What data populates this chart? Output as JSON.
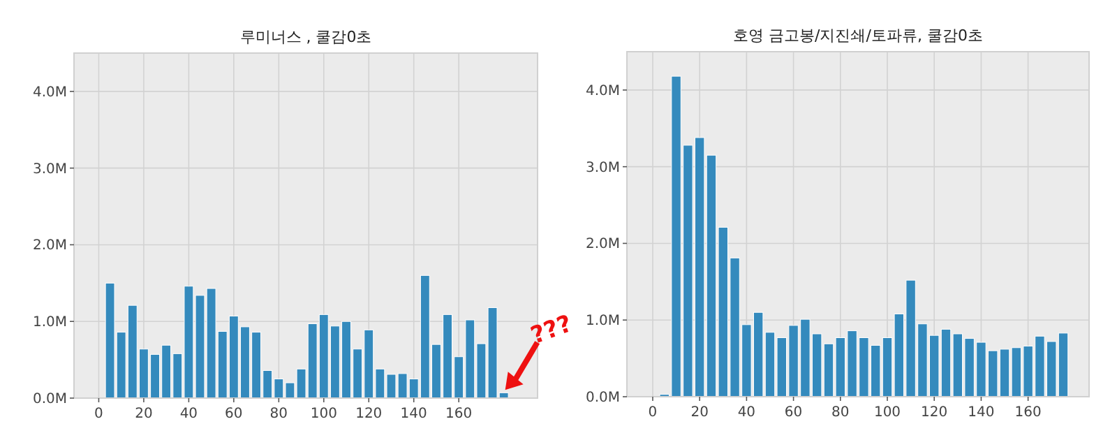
{
  "chart_data": [
    {
      "type": "bar",
      "title": "루미너스 , 쿨감0초",
      "x": [
        5,
        10,
        15,
        20,
        25,
        30,
        35,
        40,
        45,
        50,
        55,
        60,
        65,
        70,
        75,
        80,
        85,
        90,
        95,
        100,
        105,
        110,
        115,
        120,
        125,
        130,
        135,
        140,
        145,
        150,
        155,
        160,
        165,
        170,
        175,
        180
      ],
      "values": [
        1500000,
        860000,
        1210000,
        640000,
        570000,
        690000,
        580000,
        1460000,
        1340000,
        1430000,
        870000,
        1070000,
        930000,
        860000,
        360000,
        250000,
        200000,
        380000,
        970000,
        1090000,
        940000,
        1000000,
        640000,
        890000,
        380000,
        310000,
        320000,
        250000,
        1600000,
        700000,
        1090000,
        540000,
        1020000,
        710000,
        1180000,
        70000
      ],
      "color": "#348abd",
      "xlim": [
        -11,
        195
      ],
      "ylim": [
        0,
        4500000
      ],
      "xticks": [
        0,
        20,
        40,
        60,
        80,
        100,
        120,
        140,
        160
      ],
      "yticks": [
        {
          "value": 0,
          "label": "0.0M"
        },
        {
          "value": 1000000,
          "label": "1.0M"
        },
        {
          "value": 2000000,
          "label": "2.0M"
        },
        {
          "value": 3000000,
          "label": "3.0M"
        },
        {
          "value": 4000000,
          "label": "4.0M"
        }
      ],
      "grid": true,
      "annotations": [
        {
          "text": "???",
          "x": 180,
          "y": 70000
        }
      ]
    },
    {
      "type": "bar",
      "title": "호영 금고봉/지진쇄/토파류, 쿨감0초",
      "x": [
        5,
        10,
        15,
        20,
        25,
        30,
        35,
        40,
        45,
        50,
        55,
        60,
        65,
        70,
        75,
        80,
        85,
        90,
        95,
        100,
        105,
        110,
        115,
        120,
        125,
        130,
        135,
        140,
        145,
        150,
        155,
        160,
        165,
        170,
        175
      ],
      "values": [
        30000,
        4180000,
        3280000,
        3380000,
        3150000,
        2210000,
        1810000,
        940000,
        1100000,
        840000,
        770000,
        930000,
        1010000,
        820000,
        690000,
        770000,
        860000,
        770000,
        670000,
        770000,
        1080000,
        1520000,
        950000,
        800000,
        880000,
        820000,
        760000,
        710000,
        600000,
        620000,
        640000,
        660000,
        790000,
        720000,
        830000
      ],
      "color": "#348abd",
      "xlim": [
        -11,
        186
      ],
      "ylim": [
        0,
        4500000
      ],
      "xticks": [
        0,
        20,
        40,
        60,
        80,
        100,
        120,
        140,
        160
      ],
      "yticks": [
        {
          "value": 0,
          "label": "0.0M"
        },
        {
          "value": 1000000,
          "label": "1.0M"
        },
        {
          "value": 2000000,
          "label": "2.0M"
        },
        {
          "value": 3000000,
          "label": "3.0M"
        },
        {
          "value": 4000000,
          "label": "4.0M"
        }
      ],
      "grid": true
    }
  ]
}
